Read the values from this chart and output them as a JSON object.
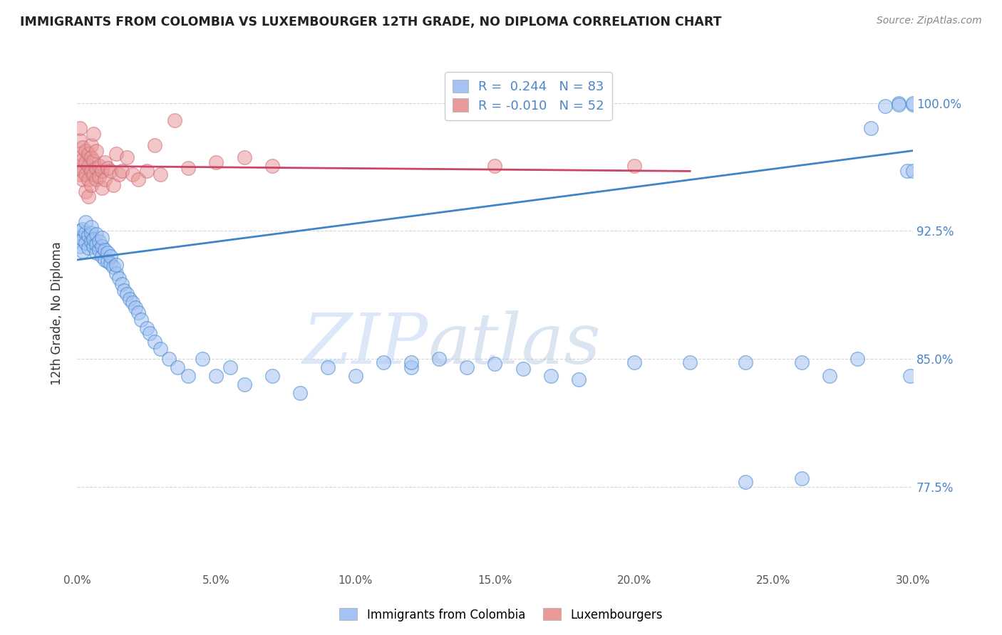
{
  "title": "IMMIGRANTS FROM COLOMBIA VS LUXEMBOURGER 12TH GRADE, NO DIPLOMA CORRELATION CHART",
  "source": "Source: ZipAtlas.com",
  "ylabel": "12th Grade, No Diploma",
  "color_blue": "#a4c2f4",
  "color_pink": "#ea9999",
  "color_blue_line": "#3d85c8",
  "color_pink_line": "#cc4466",
  "watermark_zip": "ZIP",
  "watermark_atlas": "atlas",
  "xmin": 0.0,
  "xmax": 0.3,
  "ymin": 0.725,
  "ymax": 1.028,
  "ytick_vals": [
    0.775,
    0.85,
    0.925,
    1.0
  ],
  "ytick_labels": [
    "77.5%",
    "85.0%",
    "92.5%",
    "100.0%"
  ],
  "xtick_vals": [
    0.0,
    0.05,
    0.1,
    0.15,
    0.2,
    0.25,
    0.3
  ],
  "xtick_labels": [
    "0.0%",
    "5.0%",
    "10.0%",
    "15.0%",
    "20.0%",
    "25.0%",
    "30.0%"
  ],
  "blue_line_x": [
    0.0,
    0.3
  ],
  "blue_line_y": [
    0.908,
    0.972
  ],
  "pink_line_x": [
    0.0,
    0.22
  ],
  "pink_line_y": [
    0.963,
    0.96
  ],
  "blue_x": [
    0.001,
    0.001,
    0.001,
    0.002,
    0.002,
    0.002,
    0.003,
    0.003,
    0.003,
    0.004,
    0.004,
    0.005,
    0.005,
    0.005,
    0.006,
    0.006,
    0.007,
    0.007,
    0.007,
    0.008,
    0.008,
    0.009,
    0.009,
    0.009,
    0.01,
    0.01,
    0.011,
    0.011,
    0.012,
    0.012,
    0.013,
    0.014,
    0.014,
    0.015,
    0.016,
    0.017,
    0.018,
    0.019,
    0.02,
    0.021,
    0.022,
    0.023,
    0.025,
    0.026,
    0.028,
    0.03,
    0.033,
    0.036,
    0.04,
    0.045,
    0.05,
    0.055,
    0.06,
    0.07,
    0.08,
    0.09,
    0.1,
    0.11,
    0.12,
    0.13,
    0.14,
    0.15,
    0.16,
    0.17,
    0.18,
    0.2,
    0.22,
    0.24,
    0.26,
    0.28,
    0.29,
    0.295,
    0.298,
    0.299,
    0.3,
    0.3,
    0.3,
    0.295,
    0.285,
    0.27,
    0.26,
    0.24,
    0.12
  ],
  "blue_y": [
    0.925,
    0.921,
    0.916,
    0.92,
    0.926,
    0.913,
    0.924,
    0.93,
    0.918,
    0.922,
    0.915,
    0.919,
    0.924,
    0.927,
    0.916,
    0.92,
    0.912,
    0.917,
    0.923,
    0.914,
    0.919,
    0.91,
    0.916,
    0.921,
    0.908,
    0.914,
    0.912,
    0.907,
    0.906,
    0.91,
    0.904,
    0.9,
    0.905,
    0.897,
    0.894,
    0.89,
    0.888,
    0.885,
    0.883,
    0.88,
    0.877,
    0.873,
    0.868,
    0.865,
    0.86,
    0.856,
    0.85,
    0.845,
    0.84,
    0.85,
    0.84,
    0.845,
    0.835,
    0.84,
    0.83,
    0.845,
    0.84,
    0.848,
    0.845,
    0.85,
    0.845,
    0.847,
    0.844,
    0.84,
    0.838,
    0.848,
    0.848,
    0.848,
    0.848,
    0.85,
    0.998,
    1.0,
    0.96,
    0.84,
    0.999,
    1.0,
    0.96,
    0.999,
    0.985,
    0.84,
    0.78,
    0.778,
    0.848
  ],
  "pink_x": [
    0.001,
    0.001,
    0.001,
    0.001,
    0.001,
    0.002,
    0.002,
    0.002,
    0.002,
    0.003,
    0.003,
    0.003,
    0.003,
    0.004,
    0.004,
    0.004,
    0.004,
    0.005,
    0.005,
    0.005,
    0.005,
    0.006,
    0.006,
    0.006,
    0.007,
    0.007,
    0.007,
    0.008,
    0.008,
    0.009,
    0.009,
    0.01,
    0.01,
    0.011,
    0.012,
    0.013,
    0.014,
    0.015,
    0.016,
    0.018,
    0.02,
    0.022,
    0.025,
    0.028,
    0.03,
    0.035,
    0.04,
    0.05,
    0.06,
    0.07,
    0.15,
    0.2
  ],
  "pink_y": [
    0.963,
    0.97,
    0.978,
    0.985,
    0.958,
    0.96,
    0.967,
    0.974,
    0.955,
    0.965,
    0.972,
    0.958,
    0.948,
    0.963,
    0.97,
    0.955,
    0.945,
    0.96,
    0.968,
    0.952,
    0.975,
    0.982,
    0.958,
    0.966,
    0.962,
    0.955,
    0.972,
    0.957,
    0.963,
    0.96,
    0.95,
    0.965,
    0.955,
    0.962,
    0.96,
    0.952,
    0.97,
    0.958,
    0.96,
    0.968,
    0.958,
    0.955,
    0.96,
    0.975,
    0.958,
    0.99,
    0.962,
    0.965,
    0.968,
    0.963,
    0.963,
    0.963
  ]
}
